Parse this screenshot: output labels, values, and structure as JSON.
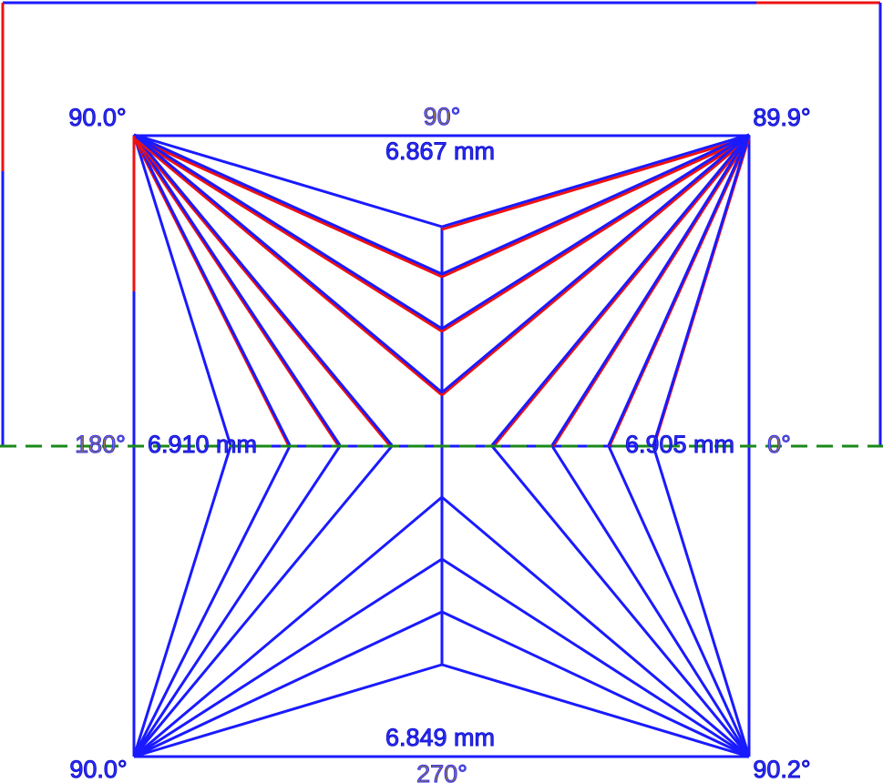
{
  "corners": {
    "top_left": "90.0°",
    "top_right": "89.9°",
    "bottom_left": "90.0°",
    "bottom_right": "90.2°"
  },
  "directions": {
    "top": "90°",
    "right": "0°",
    "bottom": "270°",
    "left": "180°"
  },
  "sides": {
    "top": "6.867 mm",
    "right": "6.905 mm",
    "bottom": "6.849 mm",
    "left": "6.910 mm"
  }
}
